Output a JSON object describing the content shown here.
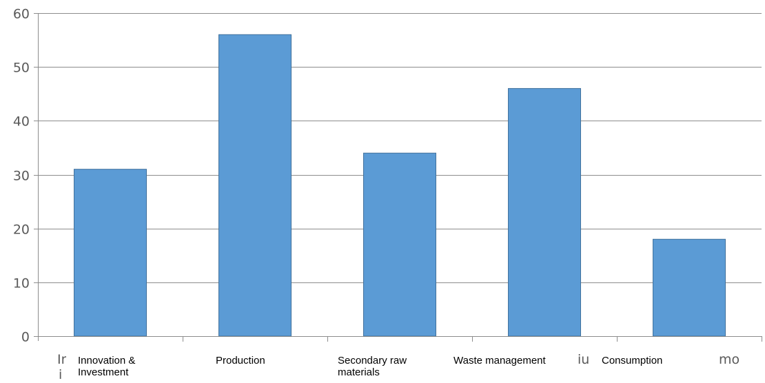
{
  "chart_data": {
    "type": "bar",
    "categories": [
      "Innovation &\nInvestment",
      "Production",
      "Secondary raw\nmaterials",
      "Waste management",
      "Consumption"
    ],
    "values": [
      31,
      56,
      34,
      46,
      18
    ],
    "ylim": [
      0,
      60
    ],
    "yticks": [
      0,
      10,
      20,
      30,
      40,
      50,
      60
    ],
    "grid": true,
    "legend": "none",
    "bar_color": "#5b9bd5",
    "bar_edge_color": "#41719c"
  },
  "stray_labels": {
    "s1": "In",
    "s1b": "i",
    "s2": "iu",
    "s3": "mo"
  }
}
